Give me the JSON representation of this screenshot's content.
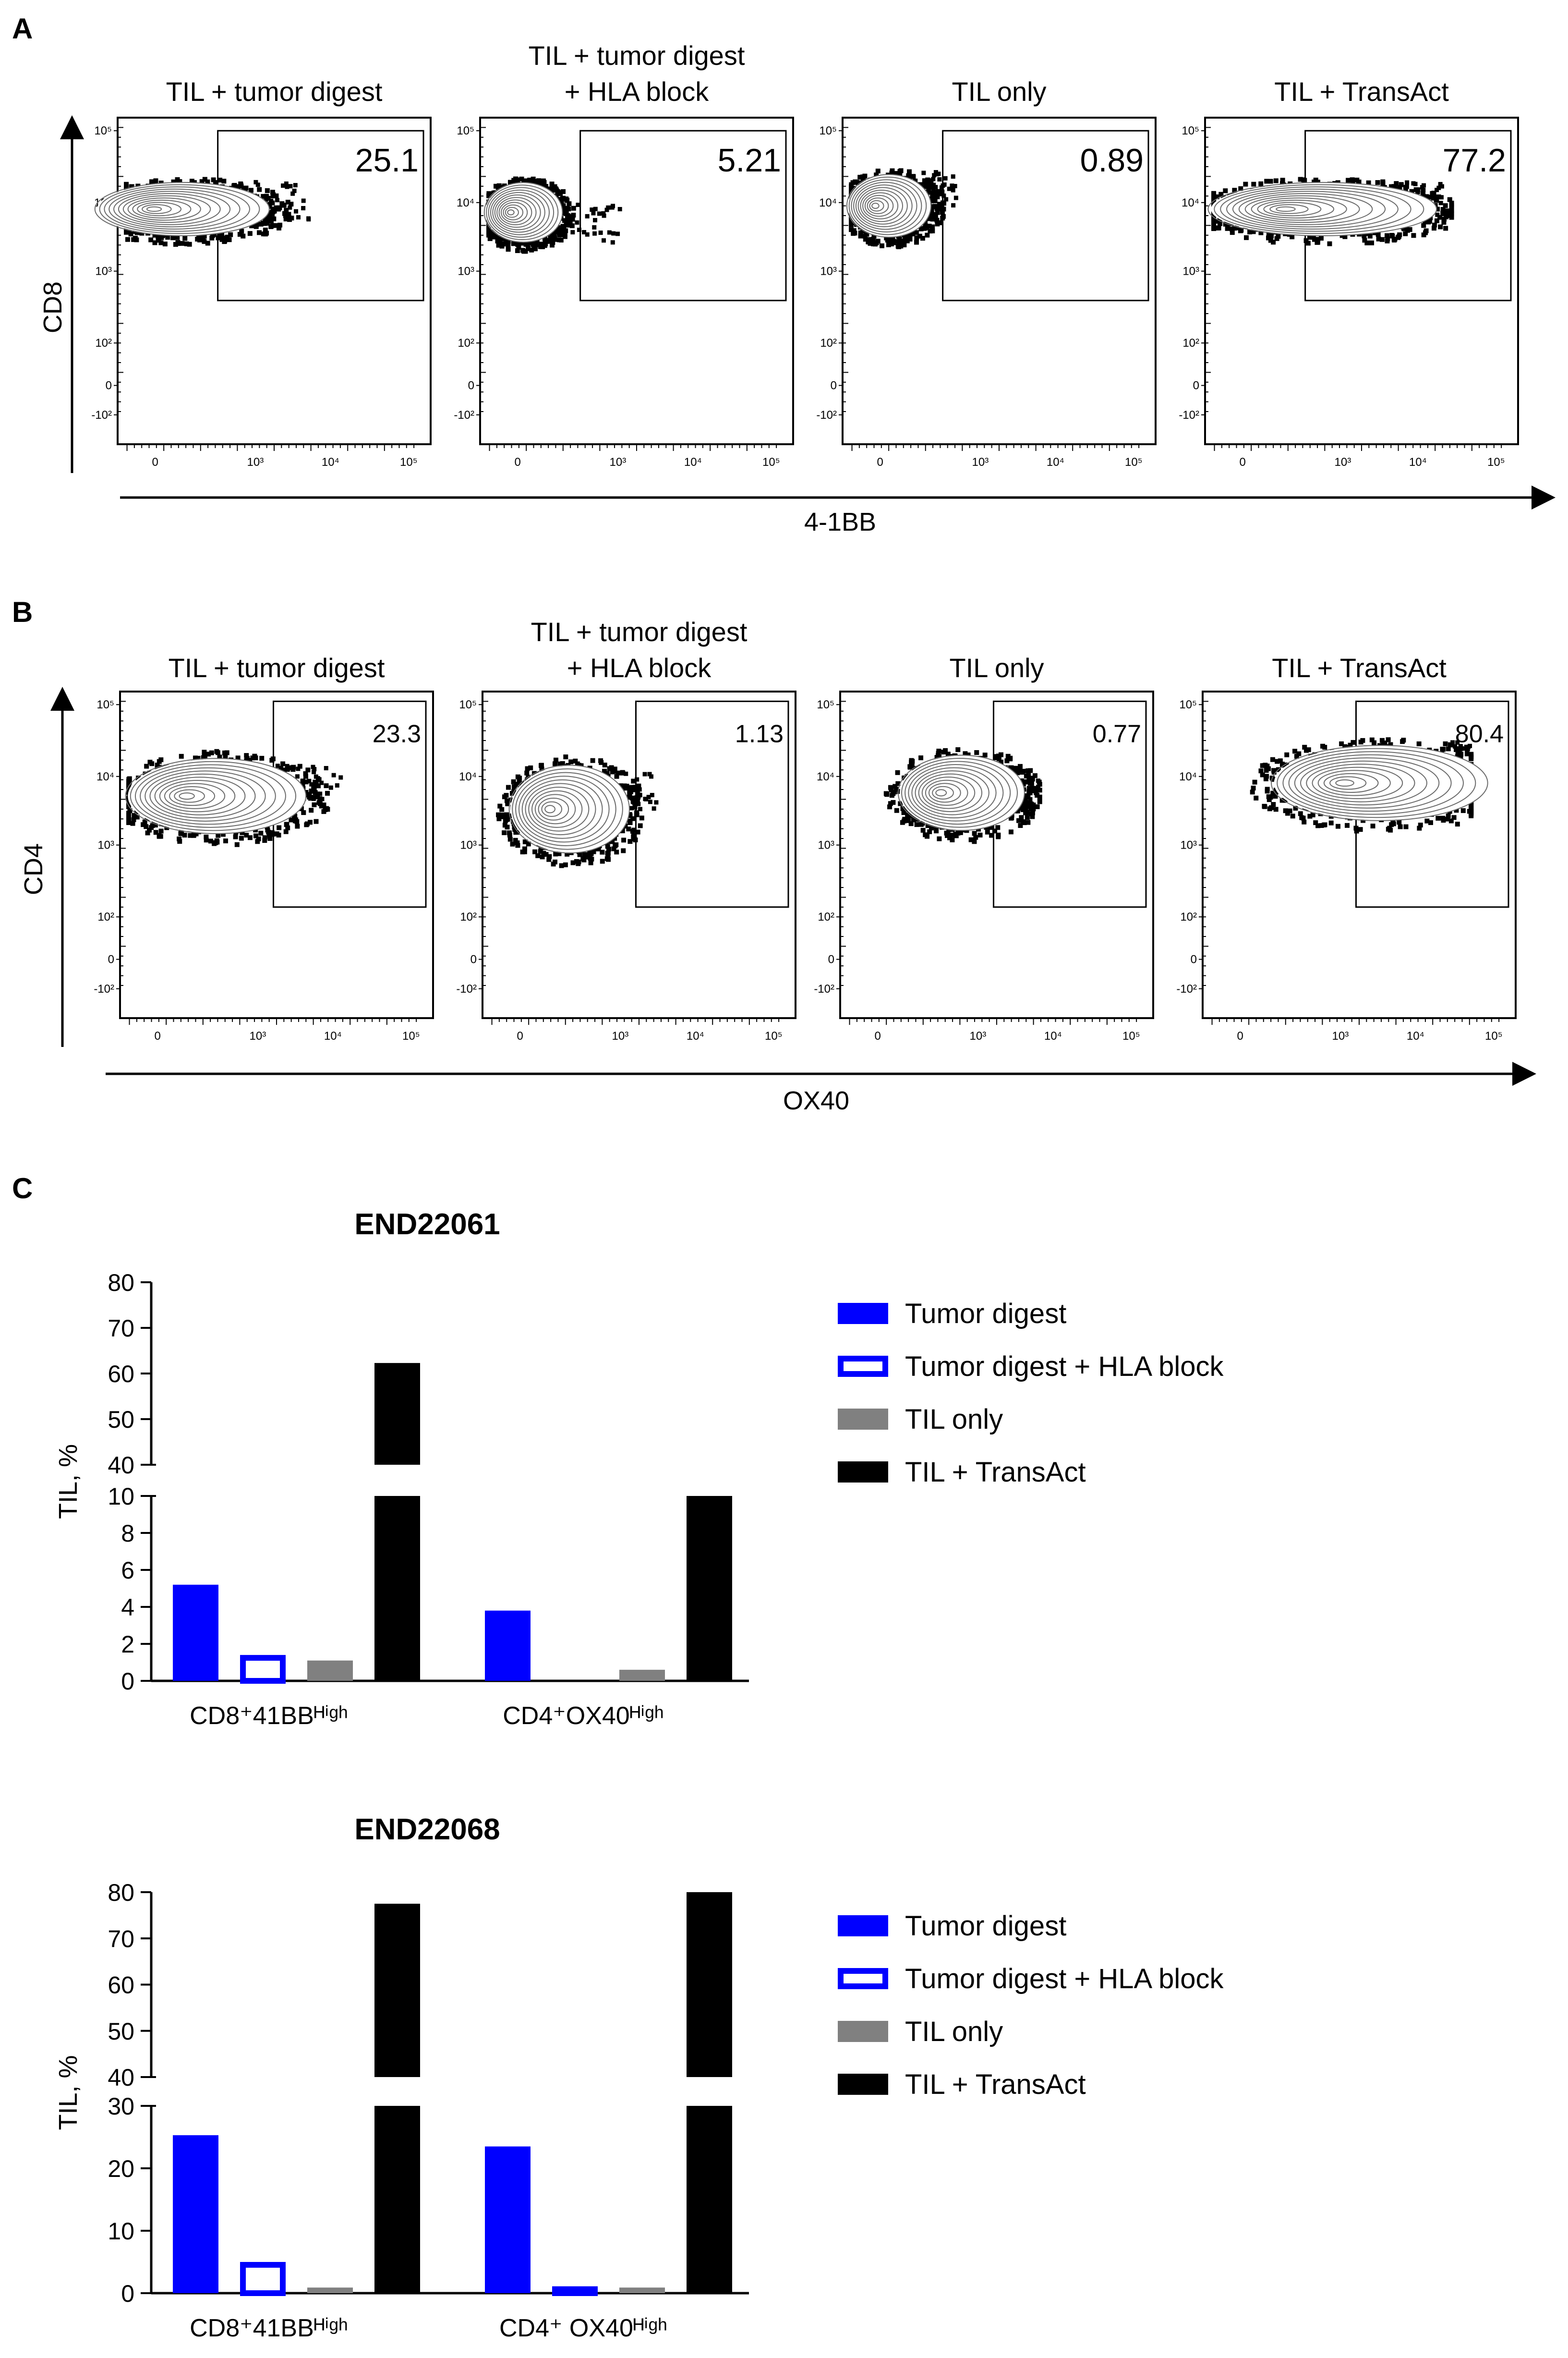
{
  "panel_labels": {
    "a": "A",
    "b": "B",
    "c": "C"
  },
  "colors": {
    "blue": "#0000ff",
    "gray": "#808080",
    "black": "#000000"
  },
  "flow": {
    "A": {
      "y_axis_label": "CD8",
      "x_axis_label": "4-1BB",
      "titles": [
        [
          "TIL + tumor digest"
        ],
        [
          "TIL + tumor digest",
          "+ HLA block"
        ],
        [
          "TIL only"
        ],
        [
          "TIL + TransAct"
        ]
      ],
      "gate_percents": [
        "25.1",
        "5.21",
        "0.89",
        "77.2"
      ]
    },
    "B": {
      "y_axis_label": "CD4",
      "x_axis_label": "OX40",
      "titles": [
        [
          "TIL + tumor digest"
        ],
        [
          "TIL + tumor digest",
          "+ HLA block"
        ],
        [
          "TIL only"
        ],
        [
          "TIL + TransAct"
        ]
      ],
      "gate_percents": [
        "23.3",
        "1.13",
        "0.77",
        "80.4"
      ]
    },
    "tick_labels": {
      "y": [
        "10⁵",
        "10⁴",
        "10³",
        "10²",
        "0",
        "-10²"
      ],
      "x": [
        "0",
        "10³",
        "10⁴",
        "10⁵"
      ]
    }
  },
  "chart_data": [
    {
      "type": "bar",
      "title": "END22061",
      "ylabel": "TIL, %",
      "categories": [
        "CD8⁺41BBᴴⁱᵍʰ",
        "CD4⁺OX40ᴴⁱᵍʰ"
      ],
      "broken_axis": {
        "lower": [
          0,
          10
        ],
        "upper": [
          40,
          80
        ]
      },
      "yticks_lower": [
        "0",
        "2",
        "4",
        "6",
        "8",
        "10"
      ],
      "yticks_upper": [
        "40",
        "50",
        "60",
        "70",
        "80"
      ],
      "series": [
        {
          "name": "Tumor digest",
          "values": [
            5.2,
            3.8
          ],
          "style": "solid-blue"
        },
        {
          "name": "Tumor digest + HLA block",
          "values": [
            1.4,
            0.0
          ],
          "style": "outline-blue"
        },
        {
          "name": "TIL only",
          "values": [
            1.1,
            0.6
          ],
          "style": "solid-gray"
        },
        {
          "name": "TIL + TransAct",
          "values": [
            62.3,
            10.0
          ],
          "style": "solid-black"
        }
      ]
    },
    {
      "type": "bar",
      "title": "END22068",
      "ylabel": "TIL, %",
      "categories": [
        "CD8⁺41BBᴴⁱᵍʰ",
        "CD4⁺ OX40ᴴⁱᵍʰ"
      ],
      "broken_axis": {
        "lower": [
          0,
          30
        ],
        "upper": [
          40,
          80
        ]
      },
      "yticks_lower": [
        "0",
        "10",
        "20",
        "30"
      ],
      "yticks_upper": [
        "40",
        "50",
        "60",
        "70",
        "80"
      ],
      "series": [
        {
          "name": "Tumor digest",
          "values": [
            25.3,
            23.5
          ],
          "style": "solid-blue"
        },
        {
          "name": "Tumor digest + HLA block",
          "values": [
            5.0,
            1.1
          ],
          "style": "outline-blue"
        },
        {
          "name": "TIL only",
          "values": [
            0.9,
            0.9
          ],
          "style": "solid-gray"
        },
        {
          "name": "TIL + TransAct",
          "values": [
            77.5,
            80.2
          ],
          "style": "solid-black"
        }
      ]
    }
  ]
}
